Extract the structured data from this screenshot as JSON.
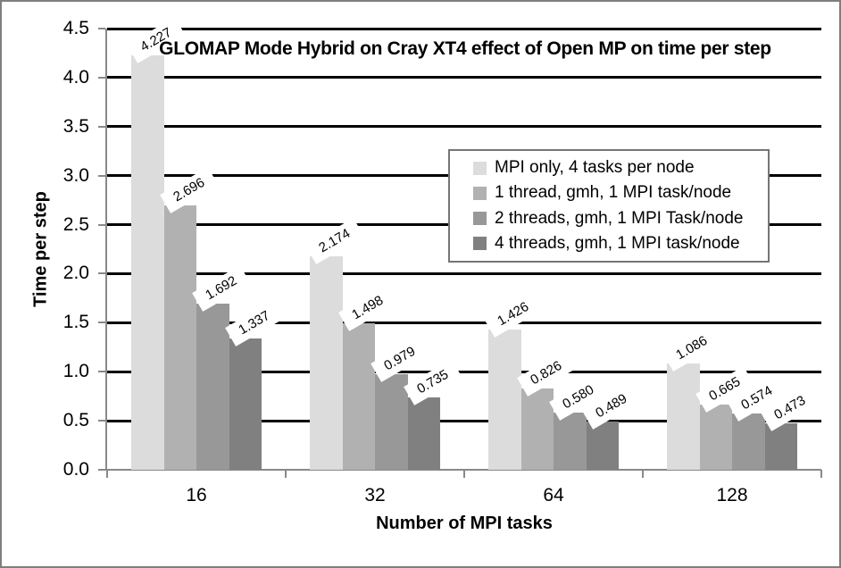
{
  "frame": {
    "background": "#ffffff",
    "border_color": "#7f7f7f"
  },
  "chart_data": {
    "type": "bar",
    "title": "GLOMAP Mode Hybrid on Cray XT4 effect of Open MP on time per step",
    "xlabel": "Number of MPI tasks",
    "ylabel": "Time per step",
    "categories": [
      "16",
      "32",
      "64",
      "128"
    ],
    "series": [
      {
        "name": "MPI only, 4 tasks per node",
        "color": "#dcdcdc",
        "values": [
          "4.227",
          "2.174",
          "1.426",
          "1.086"
        ]
      },
      {
        "name": "1 thread, gmh, 1 MPI task/node",
        "color": "#b1b1b1",
        "values": [
          "2.696",
          "1.498",
          "0.826",
          "0.665"
        ]
      },
      {
        "name": "2 threads, gmh, 1 MPI Task/node",
        "color": "#989898",
        "values": [
          "1.692",
          "0.979",
          "0.580",
          "0.574"
        ]
      },
      {
        "name": "4 threads, gmh, 1 MPI task/node",
        "color": "#808080",
        "values": [
          "1.337",
          "0.735",
          "0.489",
          "0.473"
        ]
      }
    ],
    "ylim": [
      0,
      4.5
    ],
    "yticks": [
      "0.0",
      "0.5",
      "1.0",
      "1.5",
      "2.0",
      "2.5",
      "3.0",
      "3.5",
      "4.0",
      "4.5"
    ],
    "grid": "horizontal black lines every 0.5, drawn behind bars",
    "legend_position": "upper right, inside plot",
    "data_labels": "outside end, rotated 30 degrees, white background"
  }
}
